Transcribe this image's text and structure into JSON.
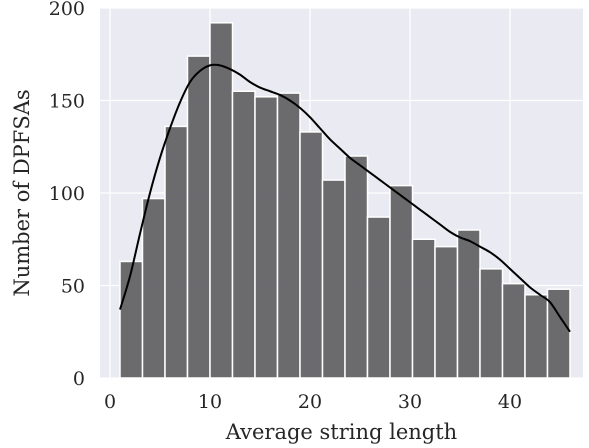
{
  "chart_data": {
    "type": "bar",
    "title": "",
    "xlabel": "Average string length",
    "ylabel": "Number of DPFSAs",
    "xlim": [
      -1,
      47.3
    ],
    "ylim": [
      0,
      200
    ],
    "xticks": [
      0,
      10,
      20,
      30,
      40
    ],
    "yticks": [
      0,
      50,
      100,
      150,
      200
    ],
    "grid": true,
    "bar_color": "#5f5e62",
    "background_color": "#eaeaf2",
    "bin_edges": [
      1.0,
      3.25,
      5.5,
      7.75,
      10.0,
      12.25,
      14.5,
      16.75,
      19.0,
      21.25,
      23.5,
      25.75,
      28.0,
      30.25,
      32.5,
      34.75,
      37.0,
      39.25,
      41.5,
      43.75,
      46.0
    ],
    "values": [
      63,
      97,
      136,
      174,
      192,
      155,
      152,
      154,
      133,
      107,
      120,
      87,
      104,
      75,
      71,
      80,
      59,
      51,
      45,
      48
    ],
    "kde": {
      "x": [
        1,
        2,
        3,
        4,
        5,
        6,
        7,
        8,
        9,
        10,
        11,
        12,
        13,
        14,
        15,
        16,
        17,
        18,
        19,
        20,
        21,
        22,
        23,
        24,
        25,
        26,
        27,
        28,
        29,
        30,
        31,
        32,
        33,
        34,
        35,
        36,
        37,
        38,
        39,
        40,
        41,
        42,
        43,
        44,
        45,
        46
      ],
      "y": [
        37,
        55,
        78,
        100,
        119,
        135,
        149,
        160,
        166,
        169,
        169,
        167,
        164,
        160,
        157,
        155,
        153,
        150,
        146,
        141,
        135,
        129,
        124,
        119,
        115,
        111,
        107,
        103,
        99,
        95,
        91,
        87,
        83,
        79,
        76,
        74,
        71,
        68,
        64,
        59,
        54,
        49,
        45,
        41,
        33,
        25
      ]
    }
  }
}
